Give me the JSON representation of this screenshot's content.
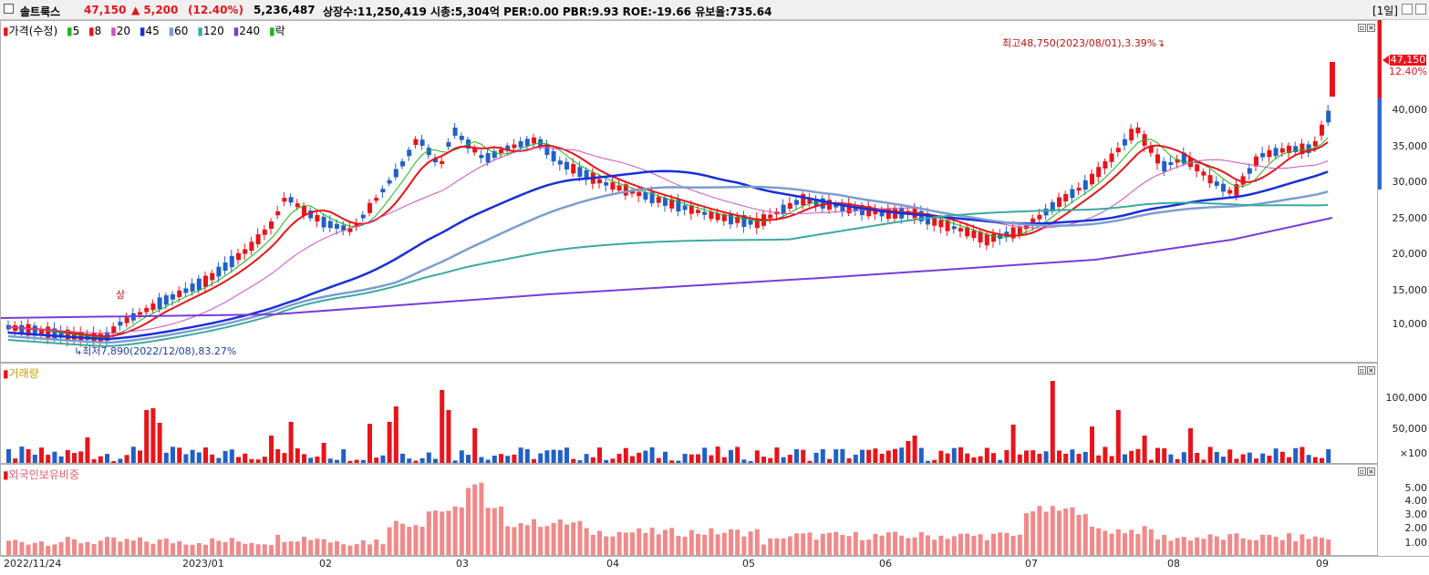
{
  "header": {
    "name": "솔트룩스",
    "price": "47,150",
    "change": "▲ 5,200",
    "change_pct": "(12.40%)",
    "volume": "5,236,487",
    "stats": "상장수:11,250,419 시총:5,304억 PER:0.00 PBR:9.93 ROE:-19.66 유보율:735.64",
    "period": "[1일]"
  },
  "price_panel": {
    "legend": [
      {
        "text": "가격(수정)",
        "color": "#e8141b"
      },
      {
        "text": "5",
        "color": "#19b619"
      },
      {
        "text": "8",
        "color": "#e8141b"
      },
      {
        "text": "20",
        "color": "#d050c0"
      },
      {
        "text": "45",
        "color": "#1a2fd8"
      },
      {
        "text": "60",
        "color": "#7d9dd0"
      },
      {
        "text": "120",
        "color": "#3aaaa0"
      },
      {
        "text": "240",
        "color": "#7a3bd8"
      },
      {
        "text": "락",
        "color": "#19b619"
      }
    ],
    "yticks": [
      "40,000",
      "35,000",
      "30,000",
      "25,000",
      "20,000",
      "15,000",
      "10,000"
    ],
    "high_label": "최고48,750(2023/08/01),3.39%",
    "low_label": "최저7,890(2022/12/08),83.27%",
    "up_mark": "상",
    "last_price_box": "47,150",
    "last_pct": "12.40%"
  },
  "volume_panel": {
    "legend": "거래량",
    "yticks": [
      "100,000",
      "50,000",
      "×100"
    ]
  },
  "foreign_panel": {
    "legend": "외국인보유비중",
    "yticks": [
      "5.00",
      "4.00",
      "3.00",
      "2.00",
      "1.00"
    ]
  },
  "xaxis": [
    "2022/11/24",
    "2023/01",
    "02",
    "03",
    "04",
    "05",
    "06",
    "07",
    "08",
    "09"
  ],
  "colors": {
    "up": "#e8141b",
    "down": "#2160c8",
    "foreign": "#f08a8a"
  }
}
